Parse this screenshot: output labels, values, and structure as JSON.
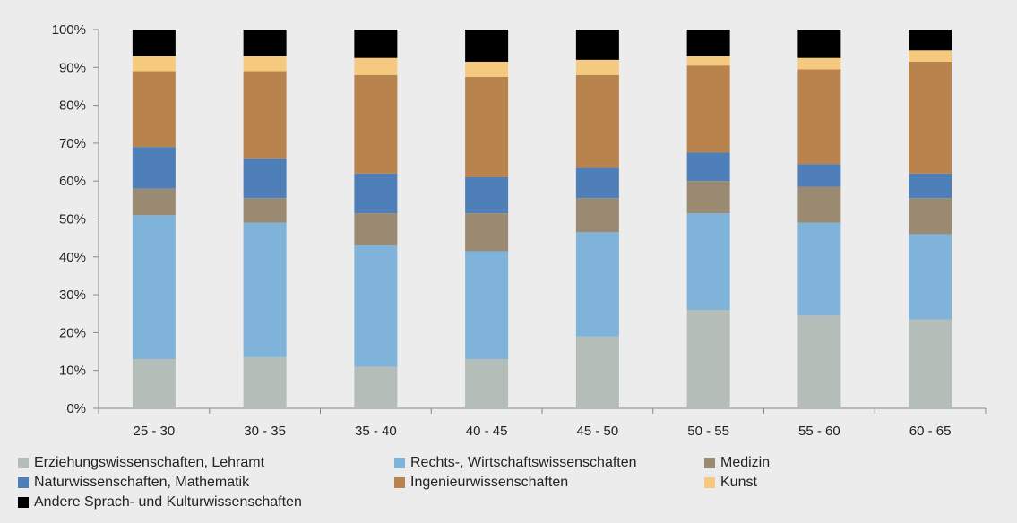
{
  "chart_data": {
    "type": "bar",
    "stacked": true,
    "percent": true,
    "categories": [
      "25 - 30",
      "30 - 35",
      "35 - 40",
      "40 - 45",
      "45 - 50",
      "50 - 55",
      "55 - 60",
      "60 - 65"
    ],
    "ylim": [
      0,
      100
    ],
    "yticks": [
      "0%",
      "10%",
      "20%",
      "30%",
      "40%",
      "50%",
      "60%",
      "70%",
      "80%",
      "90%",
      "100%"
    ],
    "grid": false,
    "legend_position": "bottom",
    "series": [
      {
        "name": "Erziehungswissenschaften, Lehramt",
        "color": "#b4bdb8",
        "values": [
          13,
          13.5,
          11,
          13,
          19,
          26,
          24.5,
          23.5
        ]
      },
      {
        "name": "Rechts-, Wirtschaftswissenschaften",
        "color": "#7fb3d9",
        "values": [
          38,
          35.5,
          32,
          28.5,
          27.5,
          25.5,
          24.5,
          22.5
        ]
      },
      {
        "name": "Medizin",
        "color": "#9b8a72",
        "values": [
          7,
          6.5,
          8.5,
          10,
          9,
          8.5,
          9.5,
          9.5
        ]
      },
      {
        "name": "Naturwissenschaften, Mathematik",
        "color": "#4f7fb8",
        "values": [
          11,
          10.5,
          10.5,
          9.5,
          8,
          7.5,
          6,
          6.5
        ]
      },
      {
        "name": "Ingenieurwissenschaften",
        "color": "#b8834c",
        "values": [
          20,
          23,
          26,
          26.5,
          24.5,
          23,
          25,
          29.5
        ]
      },
      {
        "name": "Kunst",
        "color": "#f5c97e",
        "values": [
          4,
          4,
          4.5,
          4,
          4,
          2.5,
          3,
          3
        ]
      },
      {
        "name": "Andere Sprach- und Kulturwissenschaften",
        "color": "#000000",
        "values": [
          7,
          7,
          7.5,
          8.5,
          8,
          7,
          7.5,
          5.5
        ]
      }
    ]
  }
}
